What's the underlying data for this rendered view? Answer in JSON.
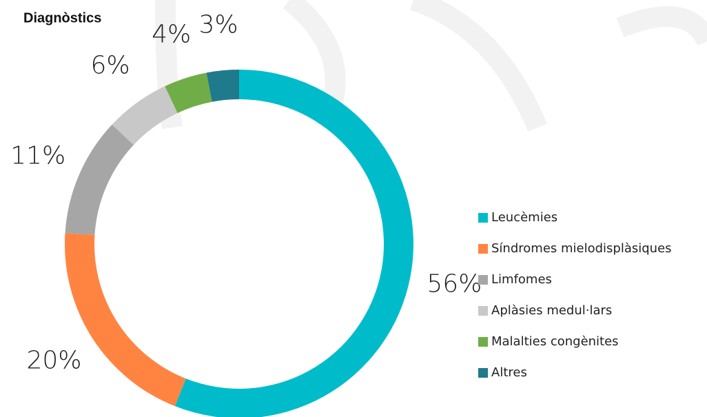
{
  "chart_data": {
    "type": "donut",
    "title": "Diagnòstics",
    "categories": [
      "Leucèmies",
      "Síndromes mielodisplàsiques",
      "Limfomes",
      "Aplàsies medul·lars",
      "Malalties congènites",
      "Altres"
    ],
    "values": [
      56,
      20,
      11,
      6,
      4,
      3
    ],
    "value_labels": [
      "56%",
      "20%",
      "11%",
      "6%",
      "4%",
      "3%"
    ],
    "colors": [
      "#00bccb",
      "#ff8442",
      "#a6a6a6",
      "#c8c8c8",
      "#70ad47",
      "#1f7a8c"
    ],
    "legend": "right"
  }
}
